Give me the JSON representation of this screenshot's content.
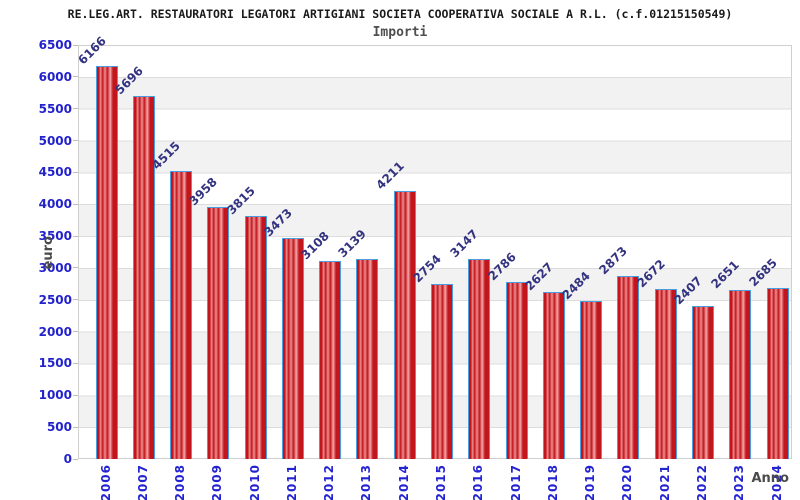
{
  "header": {
    "title": "RE.LEG.ART. RESTAURATORI LEGATORI ARTIGIANI SOCIETA COOPERATIVA SOCIALE A R.L. (c.f.01215150549)",
    "subtitle": "Importi"
  },
  "chart_data": {
    "type": "bar",
    "title": "Importi",
    "xlabel": "Anno",
    "ylabel": "euro",
    "categories": [
      "2006",
      "2007",
      "2008",
      "2009",
      "2010",
      "2011",
      "2012",
      "2013",
      "2014",
      "2015",
      "2016",
      "2017",
      "2018",
      "2019",
      "2020",
      "2021",
      "2022",
      "2023",
      "2024"
    ],
    "values": [
      6166,
      5696,
      4515,
      3958,
      3815,
      3473,
      3108,
      3139,
      4211,
      2754,
      3147,
      2786,
      2627,
      2484,
      2873,
      2672,
      2407,
      2651,
      2685
    ],
    "ylim": [
      0,
      6500
    ],
    "ytick_step": 500,
    "grid": true,
    "legend_position": "none",
    "colors": {
      "bar_fill_dark": "#c2161c",
      "bar_fill_light": "#f4a6a8",
      "bar_border": "#4a9de0",
      "value_label": "#333380",
      "axis_tick_label": "#2222cc",
      "axis_title": "#4a4a4a",
      "band_gray": "#f2f2f2",
      "gridline": "#dcdcdc"
    }
  }
}
